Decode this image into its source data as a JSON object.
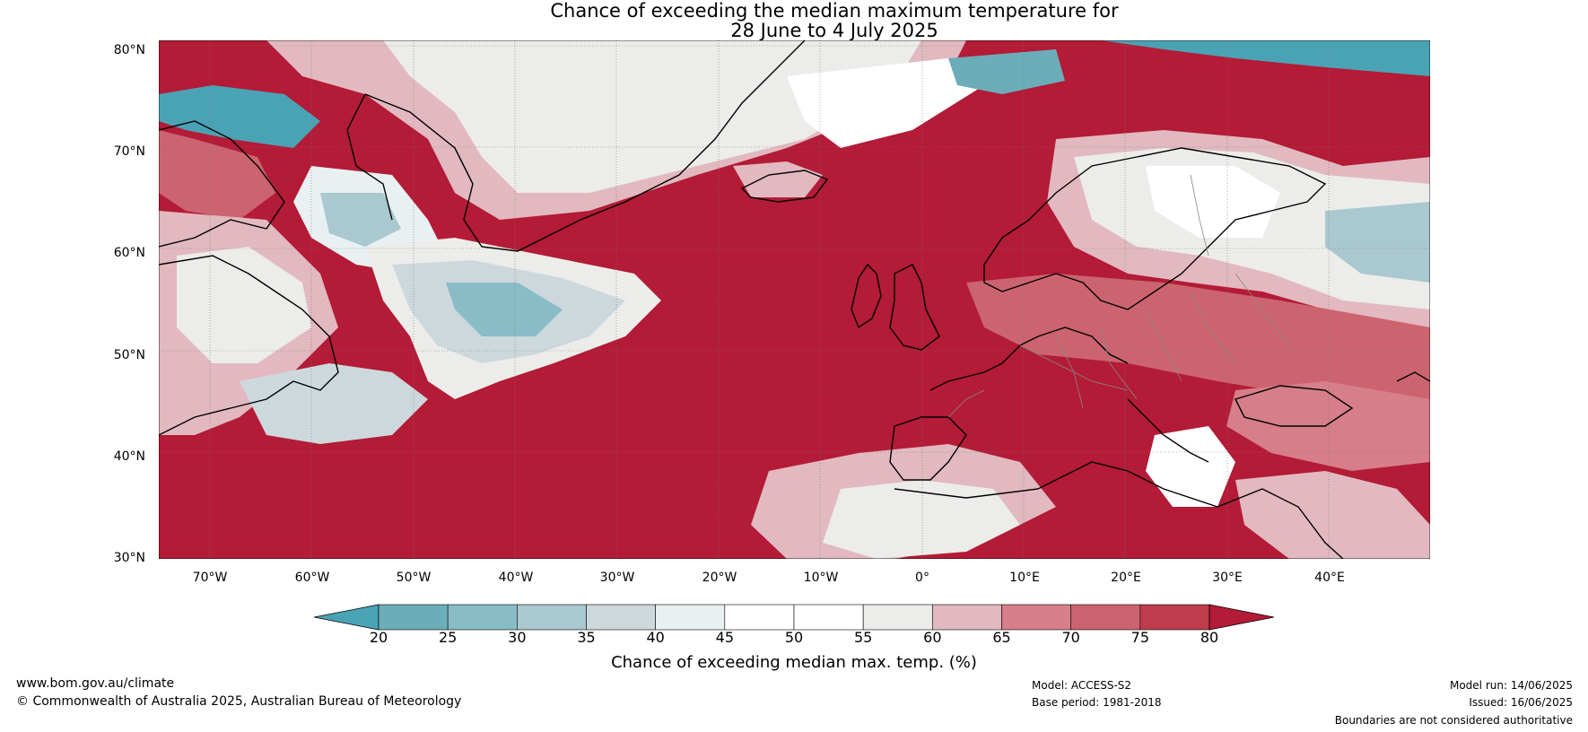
{
  "title": {
    "line1": "Chance of exceeding the median maximum temperature for",
    "line2": "28 June to 4 July 2025"
  },
  "lat_labels": [
    "80°N",
    "70°N",
    "60°N",
    "50°N",
    "40°N",
    "30°N"
  ],
  "lon_labels": [
    "70°W",
    "60°W",
    "50°W",
    "40°W",
    "30°W",
    "20°W",
    "10°W",
    "0°",
    "10°E",
    "20°E",
    "30°E",
    "40°E"
  ],
  "colorbar": {
    "label": "Chance of exceeding median max. temp. (%)",
    "ticks": [
      "20",
      "25",
      "30",
      "35",
      "40",
      "45",
      "50",
      "55",
      "60",
      "65",
      "70",
      "75",
      "80"
    ],
    "colors": [
      "#4aa3b5",
      "#6badb9",
      "#89bcc7",
      "#a9c8cf",
      "#cdd8dd",
      "#e8f0f2",
      "#ffffff",
      "#ffffff",
      "#ececea",
      "#e2b9c0",
      "#d67e89",
      "#cc6470",
      "#bf3c4c",
      "#b31b36"
    ]
  },
  "footer": {
    "website": "www.bom.gov.au/climate",
    "copyright": "© Commonwealth of Australia 2025, Australian Bureau of Meteorology",
    "model": "Model: ACCESS-S2",
    "base_period": "Base period: 1981-2018",
    "model_run": "Model run: 14/06/2025",
    "issued": "Issued: 16/06/2025",
    "disclaimer": "Boundaries are not considered authoritative"
  },
  "colors": {
    "hot": "#b31b36",
    "warm": "#cc6470",
    "mild_warm": "#e2b9c0",
    "neutral": "#ececea",
    "cool": "#a9c8cf",
    "cold": "#4aa3b5"
  }
}
